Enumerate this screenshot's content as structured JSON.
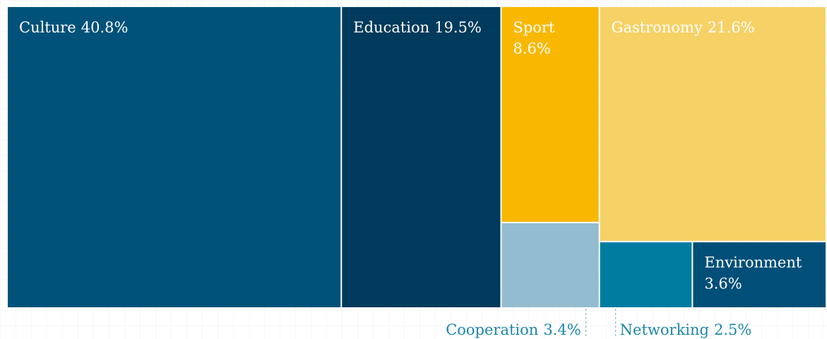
{
  "chart_data": {
    "type": "treemap",
    "categories": [
      "Culture",
      "Education",
      "Sport",
      "Gastronomy",
      "Environment",
      "Cooperation",
      "Networking"
    ],
    "values": [
      40.8,
      19.5,
      8.6,
      21.6,
      3.6,
      3.4,
      2.5
    ],
    "value_labels": [
      "40.8%",
      "19.5%",
      "8.6%",
      "21.6%",
      "3.6%",
      "3.4%",
      "2.5%"
    ],
    "colors": [
      "#00527a",
      "#003a5c",
      "#f9b800",
      "#f6d165",
      "#004f78",
      "#93bcd0",
      "#007ca0"
    ]
  }
}
